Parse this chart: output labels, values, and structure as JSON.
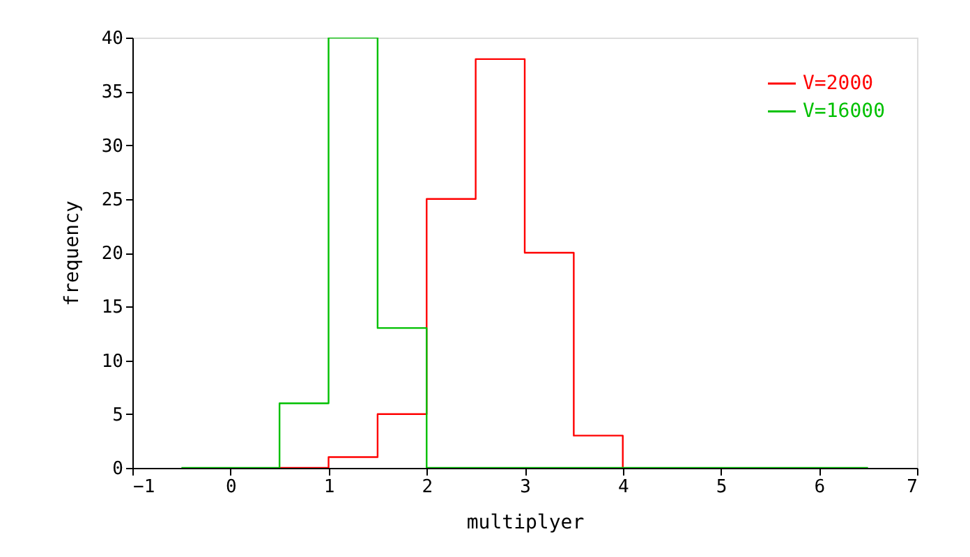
{
  "chart_data": {
    "type": "step",
    "xlabel": "multiplyer",
    "ylabel": "frequency",
    "xlim": [
      -1,
      7
    ],
    "xticks": [
      -1,
      0,
      1,
      2,
      3,
      4,
      5,
      6,
      7
    ],
    "ylim": [
      0,
      40
    ],
    "yticks": [
      0,
      5,
      10,
      15,
      20,
      25,
      30,
      35,
      40
    ],
    "legend": "top right",
    "marker": "none",
    "series": [
      {
        "name": "V=2000",
        "color": "#ff0000",
        "x": [
          0.5,
          1.0,
          1.5,
          2.0,
          2.5,
          3.0,
          3.5,
          4.0
        ],
        "values": [
          0,
          1,
          5,
          25,
          38,
          20,
          3,
          0
        ]
      },
      {
        "name": "V=16000",
        "color": "#00c000",
        "x": [
          -0.5,
          0,
          0.5,
          1.0,
          1.5,
          2.0,
          2.5,
          3.0,
          3.5,
          4.0,
          4.5,
          5.0,
          5.5,
          6.0,
          6.5
        ],
        "values": [
          0,
          0,
          6,
          40,
          13,
          0,
          0,
          0,
          0,
          0,
          0,
          0,
          0,
          0,
          0
        ]
      }
    ]
  }
}
